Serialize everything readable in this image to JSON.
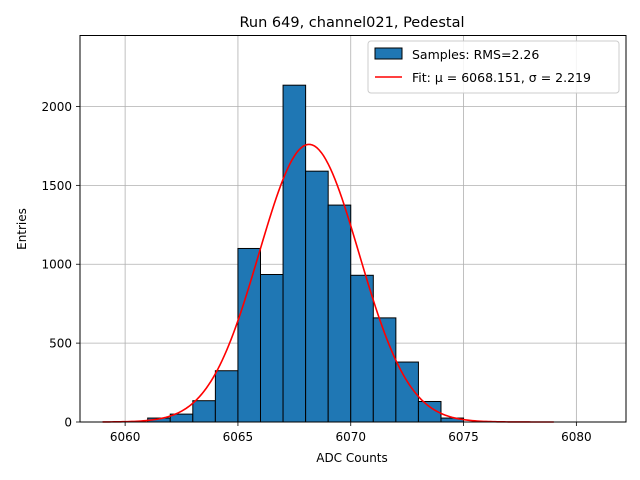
{
  "chart_data": {
    "type": "bar",
    "title": "Run 649, channel021, Pedestal",
    "xlabel": "ADC Counts",
    "ylabel": "Entries",
    "xlim": [
      6058.0,
      6082.2
    ],
    "ylim": [
      0,
      2450
    ],
    "xticks": [
      6060,
      6065,
      6070,
      6075,
      6080
    ],
    "yticks": [
      0,
      500,
      1000,
      1500,
      2000
    ],
    "grid": true,
    "legend_position": "top-right",
    "histogram": {
      "name": "Samples: RMS=2.26",
      "color": "#1f77b4",
      "edgecolor": "#000000",
      "bin_edges": [
        6061,
        6062,
        6063,
        6064,
        6065,
        6066,
        6067,
        6068,
        6069,
        6070,
        6071,
        6072,
        6073,
        6074,
        6075
      ],
      "values": [
        25,
        50,
        135,
        325,
        1100,
        935,
        2135,
        1590,
        1375,
        930,
        660,
        380,
        130,
        25
      ]
    },
    "fit": {
      "name": "Fit: μ = 6068.151, σ = 2.219",
      "color": "#ff0000",
      "mu": 6068.151,
      "sigma": 2.219,
      "amplitude": 1760,
      "x_range": [
        6059,
        6079
      ]
    }
  }
}
